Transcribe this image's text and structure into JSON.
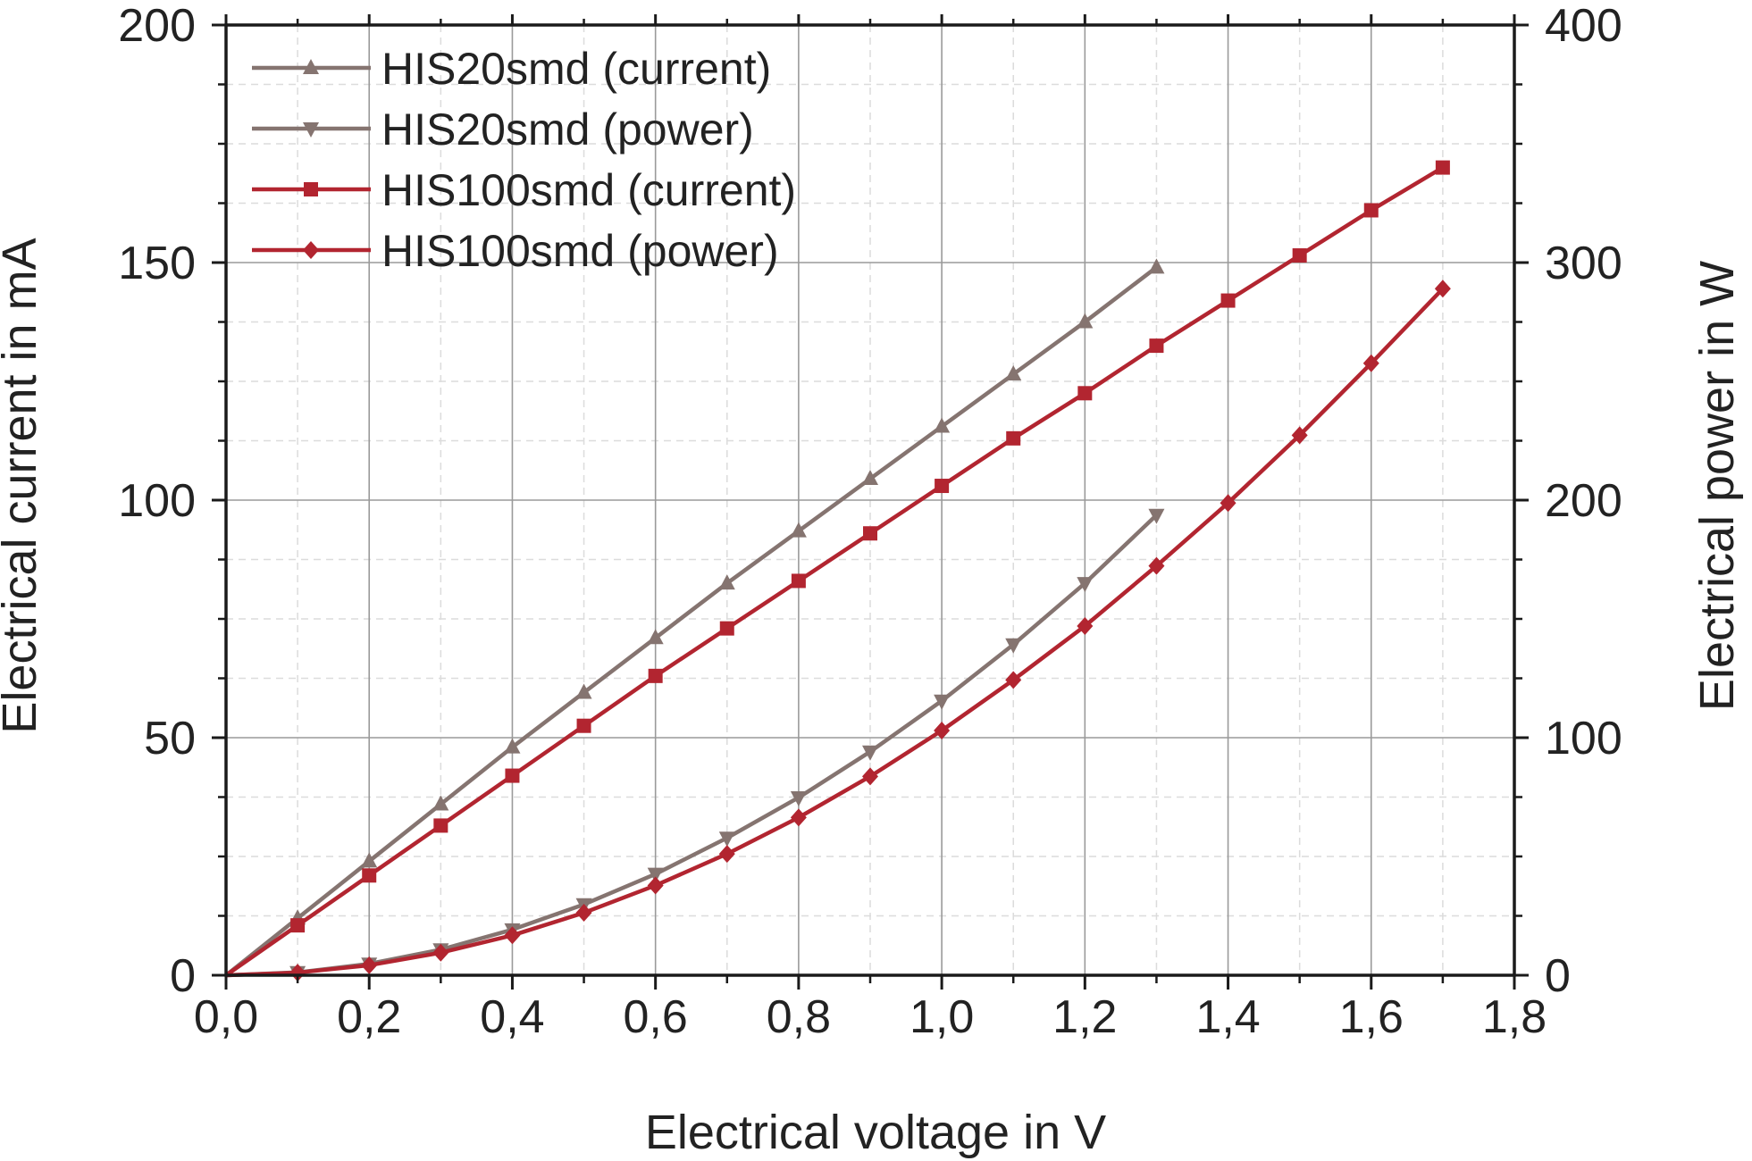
{
  "chart_data": {
    "type": "line",
    "xlabel": "Electrical voltage in V",
    "ylabel": "Electrical current in mA",
    "y2label": "Electrical power in W",
    "xlim": [
      0,
      1.8
    ],
    "ylim": [
      0,
      200
    ],
    "y2lim": [
      0,
      400
    ],
    "x_ticks": [
      "0,0",
      "0,2",
      "0,4",
      "0,6",
      "0,8",
      "1,0",
      "1,2",
      "1,4",
      "1,6",
      "1,8"
    ],
    "y_ticks": [
      "0",
      "50",
      "100",
      "150",
      "200"
    ],
    "y2_ticks": [
      "0",
      "100",
      "200",
      "300",
      "400"
    ],
    "grid": true,
    "legend_position": "top-left",
    "series": [
      {
        "name": "HIS20smd (current)",
        "axis": "left",
        "color": "#857470",
        "marker": "triangle-up",
        "x": [
          0,
          0.1,
          0.2,
          0.3,
          0.4,
          0.5,
          0.6,
          0.7,
          0.8,
          0.9,
          1.0,
          1.1,
          1.2,
          1.3
        ],
        "y": [
          0,
          12,
          24,
          36,
          48,
          59.5,
          71,
          82.5,
          93.5,
          104.5,
          115.5,
          126.5,
          137.5,
          149
        ]
      },
      {
        "name": "HIS20smd (power)",
        "axis": "right",
        "color": "#857470",
        "marker": "triangle-down",
        "x": [
          0,
          0.1,
          0.2,
          0.3,
          0.4,
          0.5,
          0.6,
          0.7,
          0.8,
          0.9,
          1.0,
          1.1,
          1.2,
          1.3
        ],
        "y": [
          0,
          1.2,
          4.8,
          10.8,
          19.2,
          29.8,
          42.6,
          57.8,
          74.8,
          94.1,
          115.5,
          139.2,
          165,
          193.7
        ]
      },
      {
        "name": "HIS100smd (current)",
        "axis": "left",
        "color": "#b22530",
        "marker": "square",
        "x": [
          0,
          0.1,
          0.2,
          0.3,
          0.4,
          0.5,
          0.6,
          0.7,
          0.8,
          0.9,
          1.0,
          1.1,
          1.2,
          1.3,
          1.4,
          1.5,
          1.6,
          1.7
        ],
        "y": [
          0,
          10.5,
          21,
          31.5,
          42,
          52.5,
          63,
          73,
          83,
          93,
          103,
          113,
          122.5,
          132.5,
          142,
          151.5,
          161,
          170
        ]
      },
      {
        "name": "HIS100smd (power)",
        "axis": "right",
        "color": "#b22530",
        "marker": "diamond",
        "x": [
          0,
          0.1,
          0.2,
          0.3,
          0.4,
          0.5,
          0.6,
          0.7,
          0.8,
          0.9,
          1.0,
          1.1,
          1.2,
          1.3,
          1.4,
          1.5,
          1.6,
          1.7
        ],
        "y": [
          0,
          1.1,
          4.2,
          9.5,
          16.8,
          26.3,
          37.8,
          51.1,
          66.4,
          83.7,
          103,
          124.3,
          147,
          172.3,
          198.8,
          227.3,
          257.6,
          289
        ]
      }
    ]
  }
}
